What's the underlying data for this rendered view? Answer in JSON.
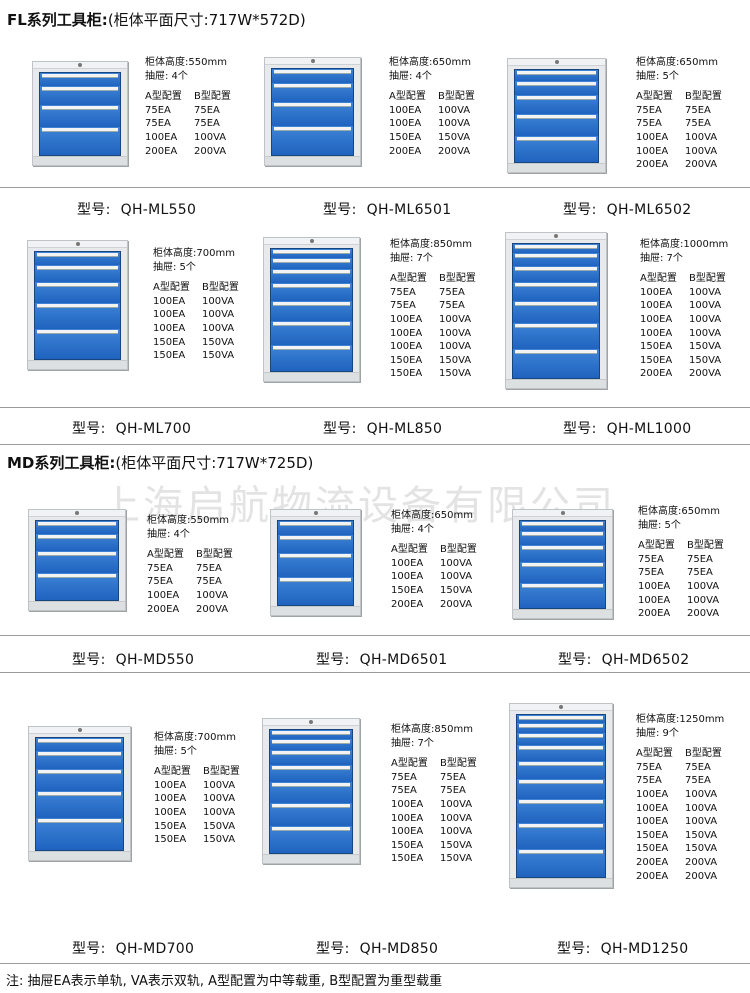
{
  "fl_title": {
    "bold": "FL系列工具柜:",
    "rest": "(柜体平面尺寸:717W*572D)"
  },
  "md_title": {
    "bold": "MD系列工具柜:",
    "rest": "(柜体平面尺寸:717W*725D)"
  },
  "watermark": "上海启航物流设备有限公司",
  "model_label": "型号:",
  "config_header": {
    "a": "A型配置",
    "b": "B型配置"
  },
  "cards": [
    {
      "height_text": "柜体高度:550mm",
      "drawers_text": "抽屉: 4个",
      "drawers": 4,
      "model": "QH-ML550",
      "rows": [
        [
          "75EA",
          "75EA"
        ],
        [
          "75EA",
          "75EA"
        ],
        [
          "100EA",
          "100VA"
        ],
        [
          "200EA",
          "200VA"
        ]
      ]
    },
    {
      "height_text": "柜体高度:650mm",
      "drawers_text": "抽屉: 4个",
      "drawers": 4,
      "model": "QH-ML6501",
      "rows": [
        [
          "100EA",
          "100VA"
        ],
        [
          "100EA",
          "100VA"
        ],
        [
          "150EA",
          "150VA"
        ],
        [
          "200EA",
          "200VA"
        ]
      ]
    },
    {
      "height_text": "柜体高度:650mm",
      "drawers_text": "抽屉: 5个",
      "drawers": 5,
      "model": "QH-ML6502",
      "rows": [
        [
          "75EA",
          "75EA"
        ],
        [
          "75EA",
          "75EA"
        ],
        [
          "100EA",
          "100VA"
        ],
        [
          "100EA",
          "100VA"
        ],
        [
          "200EA",
          "200VA"
        ]
      ]
    },
    {
      "height_text": "柜体高度:700mm",
      "drawers_text": "抽屉: 5个",
      "drawers": 5,
      "model": "QH-ML700",
      "rows": [
        [
          "100EA",
          "100VA"
        ],
        [
          "100EA",
          "100VA"
        ],
        [
          "100EA",
          "100VA"
        ],
        [
          "150EA",
          "150VA"
        ],
        [
          "150EA",
          "150VA"
        ]
      ]
    },
    {
      "height_text": "柜体高度:850mm",
      "drawers_text": "抽屉: 7个",
      "drawers": 7,
      "model": "QH-ML850",
      "rows": [
        [
          "75EA",
          "75EA"
        ],
        [
          "75EA",
          "75EA"
        ],
        [
          "100EA",
          "100VA"
        ],
        [
          "100EA",
          "100VA"
        ],
        [
          "100EA",
          "100VA"
        ],
        [
          "150EA",
          "150VA"
        ],
        [
          "150EA",
          "150VA"
        ]
      ]
    },
    {
      "height_text": "柜体高度:1000mm",
      "drawers_text": "抽屉: 7个",
      "drawers": 7,
      "model": "QH-ML1000",
      "rows": [
        [
          "100EA",
          "100VA"
        ],
        [
          "100EA",
          "100VA"
        ],
        [
          "100EA",
          "100VA"
        ],
        [
          "100EA",
          "100VA"
        ],
        [
          "150EA",
          "150VA"
        ],
        [
          "150EA",
          "150VA"
        ],
        [
          "200EA",
          "200VA"
        ]
      ]
    },
    {
      "height_text": "柜体高度:550mm",
      "drawers_text": "抽屉: 4个",
      "drawers": 4,
      "model": "QH-MD550",
      "rows": [
        [
          "75EA",
          "75EA"
        ],
        [
          "75EA",
          "75EA"
        ],
        [
          "100EA",
          "100VA"
        ],
        [
          "200EA",
          "200VA"
        ]
      ]
    },
    {
      "height_text": "柜体高度:650mm",
      "drawers_text": "抽屉: 4个",
      "drawers": 4,
      "model": "QH-MD6501",
      "rows": [
        [
          "100EA",
          "100VA"
        ],
        [
          "100EA",
          "100VA"
        ],
        [
          "150EA",
          "150VA"
        ],
        [
          "200EA",
          "200VA"
        ]
      ]
    },
    {
      "height_text": "柜体高度:650mm",
      "drawers_text": "抽屉: 5个",
      "drawers": 5,
      "model": "QH-MD6502",
      "rows": [
        [
          "75EA",
          "75EA"
        ],
        [
          "75EA",
          "75EA"
        ],
        [
          "100EA",
          "100VA"
        ],
        [
          "100EA",
          "100VA"
        ],
        [
          "200EA",
          "200VA"
        ]
      ]
    },
    {
      "height_text": "柜体高度:700mm",
      "drawers_text": "抽屉: 5个",
      "drawers": 5,
      "model": "QH-MD700",
      "rows": [
        [
          "100EA",
          "100VA"
        ],
        [
          "100EA",
          "100VA"
        ],
        [
          "100EA",
          "100VA"
        ],
        [
          "150EA",
          "150VA"
        ],
        [
          "150EA",
          "150VA"
        ]
      ]
    },
    {
      "height_text": "柜体高度:850mm",
      "drawers_text": "抽屉: 7个",
      "drawers": 7,
      "model": "QH-MD850",
      "rows": [
        [
          "75EA",
          "75EA"
        ],
        [
          "75EA",
          "75EA"
        ],
        [
          "100EA",
          "100VA"
        ],
        [
          "100EA",
          "100VA"
        ],
        [
          "100EA",
          "100VA"
        ],
        [
          "150EA",
          "150VA"
        ],
        [
          "150EA",
          "150VA"
        ]
      ]
    },
    {
      "height_text": "柜体高度:1250mm",
      "drawers_text": "抽屉: 9个",
      "drawers": 9,
      "model": "QH-MD1250",
      "rows": [
        [
          "75EA",
          "75EA"
        ],
        [
          "75EA",
          "75EA"
        ],
        [
          "100EA",
          "100VA"
        ],
        [
          "100EA",
          "100VA"
        ],
        [
          "100EA",
          "100VA"
        ],
        [
          "150EA",
          "150VA"
        ],
        [
          "150EA",
          "150VA"
        ],
        [
          "200EA",
          "200VA"
        ],
        [
          "200EA",
          "200VA"
        ]
      ]
    }
  ],
  "footnote": "注: 抽屉EA表示单轨, VA表示双轨, A型配置为中等载重, B型配置为重型载重",
  "colors": {
    "drawer_blue": "#1f63bf",
    "cabinet_gray": "#e7e9ea",
    "handle": "#f3f3f3"
  }
}
